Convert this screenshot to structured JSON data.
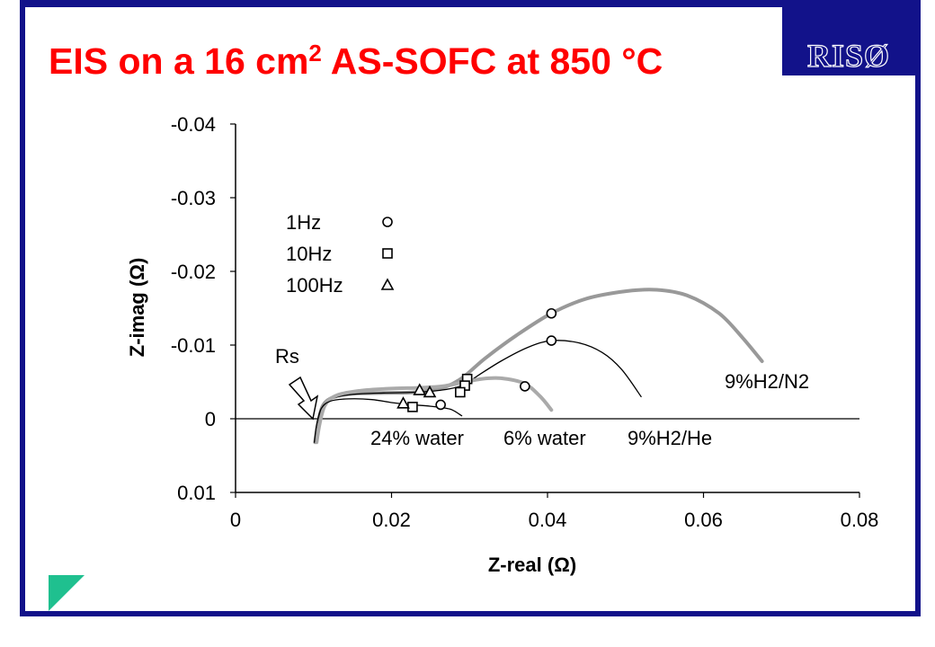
{
  "slide": {
    "title_main": "EIS on a 16 cm",
    "title_sup": "2",
    "title_tail": " AS-SOFC at 850 °C",
    "logo_text": "RISØ",
    "frame_color": "#12128a",
    "title_color": "#ff0000",
    "corner_color": "#1fc08f"
  },
  "chart_data": {
    "type": "line",
    "xlabel": "Z-real (Ω)",
    "ylabel": "Z-imag (Ω)",
    "xlim": [
      0,
      0.08
    ],
    "ylim": [
      0.01,
      -0.04
    ],
    "x_ticks": [
      0,
      0.02,
      0.04,
      0.06,
      0.08
    ],
    "x_tick_labels": [
      "0",
      "0.02",
      "0.04",
      "0.06",
      "0.08"
    ],
    "y_ticks": [
      -0.04,
      -0.03,
      -0.02,
      -0.01,
      0,
      0.01
    ],
    "y_tick_labels": [
      "-0.04",
      "-0.03",
      "-0.02",
      "-0.01",
      "0",
      "0.01"
    ],
    "grid": false,
    "series": [
      {
        "name": "9%H2/N2",
        "color": "#999999",
        "width": 4,
        "x": [
          0.0102,
          0.0106,
          0.0112,
          0.0125,
          0.015,
          0.019,
          0.023,
          0.0265,
          0.029,
          0.032,
          0.036,
          0.0405,
          0.045,
          0.05,
          0.054,
          0.058,
          0.062,
          0.065,
          0.0675
        ],
        "y": [
          0.0032,
          0.0005,
          -0.0018,
          -0.0029,
          -0.0034,
          -0.0035,
          -0.0036,
          -0.0042,
          -0.0055,
          -0.0082,
          -0.0113,
          -0.0143,
          -0.0163,
          -0.0173,
          -0.0175,
          -0.0167,
          -0.0143,
          -0.011,
          -0.0078
        ],
        "markers": [
          {
            "freq": "1Hz",
            "x": 0.0405,
            "y": -0.0143
          },
          {
            "freq": "10Hz",
            "x": 0.0297,
            "y": -0.0054
          }
        ]
      },
      {
        "name": "9%H2/He",
        "color": "#000000",
        "width": 1.3,
        "x": [
          0.0103,
          0.0106,
          0.0112,
          0.0125,
          0.015,
          0.019,
          0.023,
          0.0265,
          0.0293,
          0.031,
          0.034,
          0.0375,
          0.0405,
          0.044,
          0.047,
          0.0495,
          0.052
        ],
        "y": [
          0.0032,
          0.0008,
          -0.0017,
          -0.0028,
          -0.0033,
          -0.0035,
          -0.0036,
          -0.0039,
          -0.0046,
          -0.0058,
          -0.0078,
          -0.0097,
          -0.0106,
          -0.0103,
          -0.009,
          -0.0067,
          -0.003
        ],
        "markers": [
          {
            "freq": "1Hz",
            "x": 0.0405,
            "y": -0.0106
          },
          {
            "freq": "10Hz",
            "x": 0.0294,
            "y": -0.0045
          },
          {
            "freq": "100Hz",
            "x": 0.0236,
            "y": -0.0039
          }
        ]
      },
      {
        "name": "6% water",
        "color": "#aaaaaa",
        "width": 4,
        "x": [
          0.0104,
          0.0108,
          0.0115,
          0.013,
          0.016,
          0.02,
          0.0235,
          0.0265,
          0.029,
          0.0315,
          0.034,
          0.037,
          0.039,
          0.0405
        ],
        "y": [
          0.0032,
          0.0006,
          -0.0019,
          -0.0032,
          -0.0038,
          -0.0041,
          -0.0042,
          -0.0044,
          -0.0049,
          -0.0054,
          -0.0055,
          -0.0048,
          -0.0031,
          -0.0012
        ],
        "markers": [
          {
            "freq": "1Hz",
            "x": 0.0371,
            "y": -0.0044
          },
          {
            "freq": "10Hz",
            "x": 0.0288,
            "y": -0.0036
          },
          {
            "freq": "100Hz",
            "x": 0.0249,
            "y": -0.0036
          }
        ]
      },
      {
        "name": "24% water",
        "color": "#000000",
        "width": 1.3,
        "x": [
          0.0101,
          0.0104,
          0.011,
          0.0122,
          0.0145,
          0.0175,
          0.02,
          0.0225,
          0.025,
          0.0275,
          0.029
        ],
        "y": [
          0.0032,
          0.0008,
          -0.0014,
          -0.0024,
          -0.0027,
          -0.0026,
          -0.0022,
          -0.0019,
          -0.0017,
          -0.0013,
          -0.0004
        ],
        "markers": [
          {
            "freq": "1Hz",
            "x": 0.0263,
            "y": -0.0019
          },
          {
            "freq": "10Hz",
            "x": 0.0227,
            "y": -0.0016
          },
          {
            "freq": "100Hz",
            "x": 0.0215,
            "y": -0.0021
          }
        ]
      }
    ],
    "legend": [
      {
        "label": "1Hz",
        "marker": "circle"
      },
      {
        "label": "10Hz",
        "marker": "square"
      },
      {
        "label": "100Hz",
        "marker": "triangle"
      }
    ],
    "annotations": {
      "rs": "Rs",
      "n2": "9%H2/N2",
      "bottom_24": "24% water",
      "bottom_6": "6% water",
      "bottom_he": "9%H2/He"
    }
  }
}
